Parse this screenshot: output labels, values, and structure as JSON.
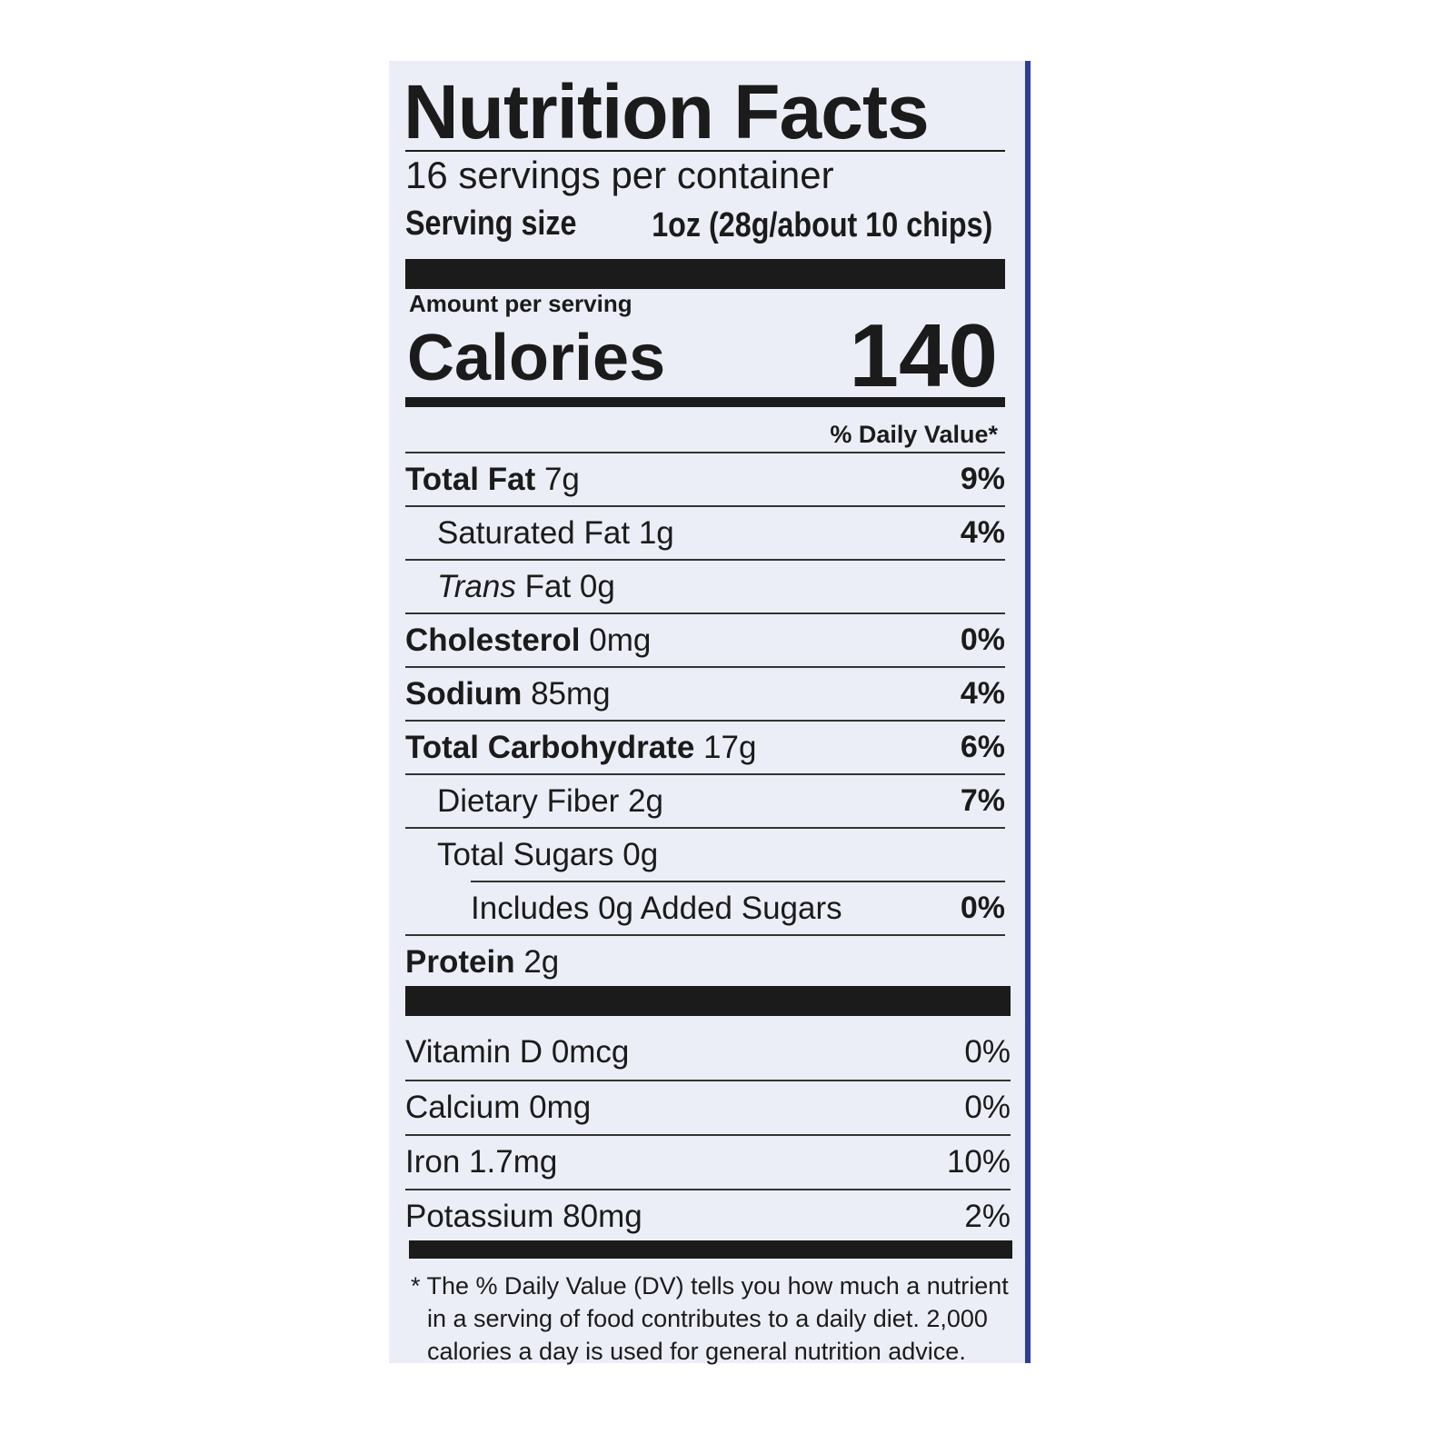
{
  "title": "Nutrition Facts",
  "servings": "16 servings per container",
  "serving_size": {
    "label": "Serving size",
    "value": "1oz (28g/about 10 chips)"
  },
  "amount_per_serving": "Amount per serving",
  "calories": {
    "label": "Calories",
    "value": 140
  },
  "daily_value_header": "% Daily Value*",
  "nutrients": [
    {
      "name": "Total Fat",
      "amount": "7g",
      "dv": "9%"
    },
    {
      "name": "Saturated Fat",
      "amount": "1g",
      "dv": "4%"
    },
    {
      "name": [
        "Trans",
        "Fat"
      ],
      "amount": "0g"
    },
    {
      "name": "Cholesterol",
      "amount": "0mg",
      "dv": "0%"
    },
    {
      "name": "Sodium",
      "amount": "85mg",
      "dv": "4%"
    },
    {
      "name": "Total Carbohydrate",
      "amount": "17g",
      "dv": "6%"
    },
    {
      "name": "Dietary Fiber",
      "amount": "2g",
      "dv": "7%"
    },
    {
      "name": "Total Sugars",
      "amount": "0g"
    },
    {
      "name": "Includes 0g Added Sugars",
      "dv": "0%"
    },
    {
      "name": "Protein",
      "amount": "2g"
    }
  ],
  "vitamins": [
    {
      "name": "Vitamin D",
      "amount": "0mcg",
      "dv": "0%"
    },
    {
      "name": "Calcium",
      "amount": "0mg",
      "dv": "0%"
    },
    {
      "name": "Iron",
      "amount": "1.7mg",
      "dv": "10%"
    },
    {
      "name": "Potassium",
      "amount": "80mg",
      "dv": "2%"
    }
  ],
  "footnote": "* The % Daily Value (DV) tells you how much a nutrient in a serving of food contributes to a daily diet. 2,000 calories a day is used for general nutrition advice."
}
